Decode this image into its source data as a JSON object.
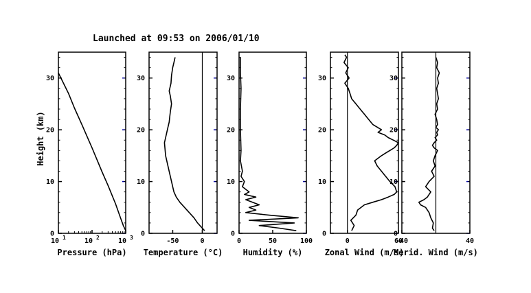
{
  "title": "Launched at 09:53 on 2006/01/10",
  "colors": {
    "axis": "#000000",
    "grid_tick": "#0000aa",
    "line": "#000000",
    "background": "#ffffff"
  },
  "chart_data": [
    {
      "type": "line",
      "xlabel": "Pressure (hPa)",
      "ylabel": "Height (km)",
      "xscale": "log",
      "xlim": [
        10,
        1000
      ],
      "ylim": [
        0,
        35
      ],
      "xticks": [
        {
          "v": 10,
          "base": "10",
          "exp": "1"
        },
        {
          "v": 100,
          "base": "10",
          "exp": "2"
        },
        {
          "v": 1000,
          "base": "10",
          "exp": "3"
        }
      ],
      "yticks": [
        "0",
        "10",
        "20",
        "30"
      ],
      "series": [
        {
          "x": [
            1000,
            850,
            700,
            500,
            300,
            200,
            100,
            50,
            30,
            20,
            10
          ],
          "y": [
            0.5,
            1.5,
            3,
            5.7,
            9.2,
            11.8,
            16.5,
            21,
            24.2,
            27,
            31
          ]
        }
      ]
    },
    {
      "type": "line",
      "xlabel": "Temperature (°C)",
      "xlim": [
        -90,
        25
      ],
      "ylim": [
        0,
        35
      ],
      "xticks": [
        "-50",
        "0"
      ],
      "yticks": [
        "0",
        "10",
        "20",
        "30"
      ],
      "reference_line_x": 0,
      "series": [
        {
          "x": [
            4,
            0,
            -4,
            -8,
            -14,
            -22,
            -30,
            -38,
            -44,
            -48,
            -50,
            -52,
            -55,
            -58,
            -62,
            -64,
            -62,
            -60,
            -58,
            -56,
            -55,
            -54,
            -52,
            -54,
            -56,
            -53,
            -52,
            -50,
            -48,
            -46
          ],
          "y": [
            0.5,
            1.0,
            1.5,
            2.0,
            3.0,
            4.0,
            5.0,
            6.0,
            7.0,
            8.0,
            9.0,
            10.0,
            11.5,
            13.0,
            15.0,
            17.5,
            18.5,
            19.5,
            20.5,
            21.5,
            22.5,
            23.5,
            25.0,
            26.5,
            27.5,
            29.0,
            30.5,
            32.0,
            33.0,
            34.0
          ]
        }
      ]
    },
    {
      "type": "line",
      "xlabel": "Humidity (%)",
      "xlim": [
        0,
        100
      ],
      "ylim": [
        0,
        35
      ],
      "xticks": [
        "0",
        "50",
        "100"
      ],
      "yticks": [
        "0",
        "10",
        "20",
        "30"
      ],
      "series": [
        {
          "x": [
            85,
            60,
            30,
            82,
            15,
            88,
            45,
            10,
            25,
            15,
            30,
            20,
            10,
            25,
            8,
            15,
            5,
            8,
            3,
            5,
            2,
            3,
            2,
            2,
            3,
            2,
            2
          ],
          "y": [
            0.5,
            1.0,
            1.5,
            2.0,
            2.5,
            3.0,
            3.5,
            4.0,
            4.5,
            5.0,
            5.5,
            6.0,
            6.5,
            7.0,
            7.5,
            8.0,
            9.0,
            10.0,
            11.0,
            12.0,
            14.0,
            16.0,
            20.0,
            24.0,
            28.0,
            31.0,
            34.0
          ]
        }
      ]
    },
    {
      "type": "line",
      "xlabel": "Zonal Wind (m/s)",
      "xlim": [
        -20,
        60
      ],
      "ylim": [
        0,
        35
      ],
      "xticks": [
        "0",
        "60"
      ],
      "yticks": [
        "0",
        "10",
        "20",
        "30"
      ],
      "reference_line_x": 0,
      "series": [
        {
          "x": [
            5,
            8,
            4,
            10,
            12,
            20,
            30,
            40,
            48,
            55,
            58,
            56,
            50,
            45,
            40,
            35,
            32,
            36,
            40,
            45,
            50,
            55,
            58,
            60,
            54,
            48,
            44,
            36,
            40,
            30,
            25,
            20,
            15,
            10,
            5,
            3,
            1,
            -3,
            2,
            -2,
            1,
            -4,
            -1,
            -3
          ],
          "y": [
            0.5,
            1.5,
            2.5,
            3.5,
            4.5,
            5.5,
            6.0,
            6.5,
            7.0,
            7.5,
            8.0,
            9.0,
            10.0,
            11.0,
            12.0,
            13.0,
            14.0,
            14.5,
            15.0,
            15.5,
            16.0,
            16.5,
            17.0,
            17.5,
            18.0,
            18.5,
            19.0,
            19.5,
            20.0,
            21.0,
            22.0,
            23.0,
            24.0,
            25.0,
            26.0,
            27.0,
            28.0,
            29.0,
            30.0,
            31.0,
            32.0,
            33.0,
            34.0,
            34.5
          ]
        }
      ]
    },
    {
      "type": "line",
      "xlabel": "Merid. Wind (m/s)",
      "xlim": [
        -40,
        40
      ],
      "ylim": [
        0,
        35
      ],
      "xticks": [
        "-40",
        "40"
      ],
      "yticks": [
        "0",
        "10",
        "20",
        "30"
      ],
      "reference_line_x": 0,
      "series": [
        {
          "x": [
            -2,
            -4,
            -3,
            -6,
            -8,
            -12,
            -18,
            -20,
            -14,
            -10,
            -6,
            -12,
            -8,
            -2,
            -5,
            -1,
            -3,
            -1,
            2,
            -2,
            -4,
            -2,
            1,
            -1,
            2,
            1,
            3,
            0,
            2,
            1,
            -1,
            2,
            1,
            3,
            2,
            1,
            3,
            2,
            4,
            1,
            2,
            0
          ],
          "y": [
            0.5,
            1.0,
            2.0,
            3.0,
            4.0,
            5.0,
            5.5,
            6.0,
            6.5,
            7.0,
            8.0,
            9.0,
            10.0,
            11.0,
            12.0,
            13.0,
            14.0,
            15.0,
            16.0,
            16.5,
            17.0,
            17.5,
            18.0,
            18.5,
            19.0,
            19.5,
            20.0,
            20.5,
            21.0,
            22.0,
            23.0,
            24.0,
            25.0,
            26.0,
            27.0,
            28.0,
            29.0,
            30.0,
            31.0,
            32.0,
            33.0,
            34.0
          ]
        }
      ]
    }
  ]
}
